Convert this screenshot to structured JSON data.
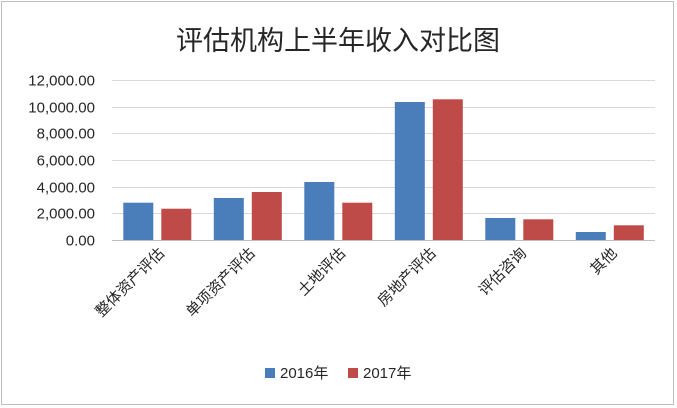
{
  "chart_data": {
    "type": "bar",
    "title": "评估机构上半年收入对比图",
    "categories": [
      "整体资产评估",
      "单项资产评估",
      "土地评估",
      "房地产评估",
      "评估咨询",
      "其他"
    ],
    "series": [
      {
        "name": "2016年",
        "color": "#4a7ebb",
        "values": [
          2800,
          3150,
          4350,
          10350,
          1650,
          600
        ]
      },
      {
        "name": "2017年",
        "color": "#be4b48",
        "values": [
          2350,
          3600,
          2800,
          10550,
          1550,
          1100
        ]
      }
    ],
    "ylim": [
      0,
      12000
    ],
    "yticks": [
      "0.00",
      "2,000.00",
      "4,000.00",
      "6,000.00",
      "8,000.00",
      "10,000.00",
      "12,000.00"
    ],
    "ytick_values": [
      0,
      2000,
      4000,
      6000,
      8000,
      10000,
      12000
    ],
    "grid": true,
    "legend_position": "bottom",
    "xlabel": "",
    "ylabel": ""
  }
}
